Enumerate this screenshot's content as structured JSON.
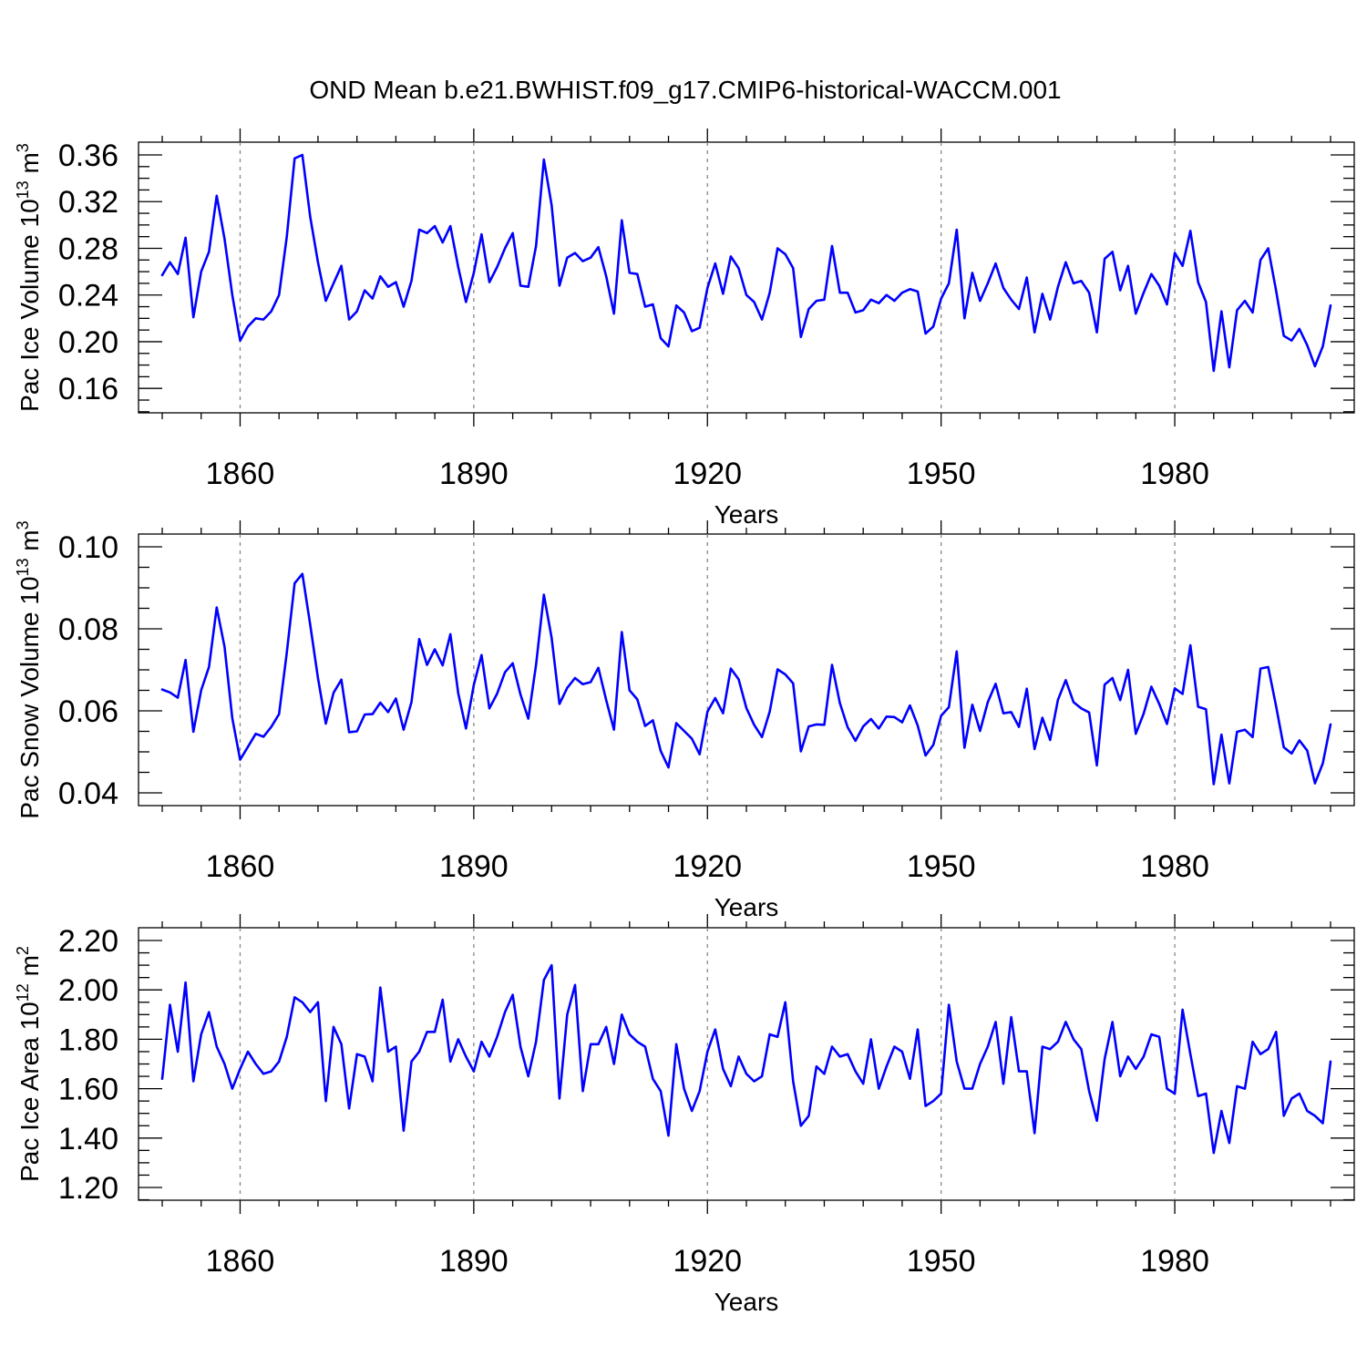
{
  "title": "OND Mean b.e21.BWHIST.f09_g17.CMIP6-historical-WACCM.001",
  "colors": {
    "line": "#0000ff",
    "axis": "#000000",
    "grid": "#888888"
  },
  "chart_data": [
    {
      "type": "line",
      "title": "",
      "xlabel": "Years",
      "ylabel": "Pac Ice Volume 10",
      "ylabel_sup": "13",
      "ylabel_unit": "m",
      "ylabel_unit_sup": "3",
      "xlim": [
        1850,
        2000
      ],
      "ylim": [
        0.15,
        0.36
      ],
      "xticks": [
        1860,
        1890,
        1920,
        1950,
        1980
      ],
      "xtick_labels": [
        "1860",
        "1890",
        "1920",
        "1950",
        "1980"
      ],
      "yticks": [
        0.16,
        0.2,
        0.24,
        0.28,
        0.32,
        0.36
      ],
      "ytick_labels": [
        "0.16",
        "0.20",
        "0.24",
        "0.28",
        "0.32",
        "0.36"
      ],
      "grid": "dashed vertical at labeled years",
      "x_start": 1850,
      "series": [
        {
          "values": [
            0.257,
            0.268,
            0.258,
            0.289,
            0.221,
            0.26,
            0.277,
            0.325,
            0.288,
            0.24,
            0.201,
            0.213,
            0.22,
            0.219,
            0.226,
            0.24,
            0.29,
            0.357,
            0.36,
            0.307,
            0.268,
            0.235,
            0.25,
            0.265,
            0.219,
            0.226,
            0.244,
            0.237,
            0.256,
            0.247,
            0.251,
            0.23,
            0.252,
            0.296,
            0.293,
            0.299,
            0.285,
            0.299,
            0.264,
            0.234,
            0.259,
            0.292,
            0.251,
            0.264,
            0.28,
            0.293,
            0.248,
            0.247,
            0.282,
            0.356,
            0.317,
            0.248,
            0.272,
            0.276,
            0.269,
            0.272,
            0.281,
            0.256,
            0.224,
            0.304,
            0.259,
            0.258,
            0.23,
            0.232,
            0.203,
            0.196,
            0.231,
            0.225,
            0.209,
            0.212,
            0.246,
            0.267,
            0.241,
            0.273,
            0.263,
            0.24,
            0.234,
            0.219,
            0.242,
            0.28,
            0.275,
            0.263,
            0.204,
            0.228,
            0.235,
            0.236,
            0.282,
            0.242,
            0.242,
            0.225,
            0.227,
            0.236,
            0.233,
            0.24,
            0.235,
            0.242,
            0.245,
            0.243,
            0.207,
            0.213,
            0.237,
            0.25,
            0.296,
            0.22,
            0.259,
            0.235,
            0.25,
            0.267,
            0.246,
            0.236,
            0.228,
            0.255,
            0.208,
            0.241,
            0.219,
            0.247,
            0.268,
            0.25,
            0.252,
            0.242,
            0.208,
            0.271,
            0.277,
            0.244,
            0.265,
            0.224,
            0.242,
            0.258,
            0.248,
            0.232,
            0.276,
            0.265,
            0.295,
            0.251,
            0.234,
            0.175,
            0.226,
            0.178,
            0.227,
            0.235,
            0.225,
            0.27,
            0.28,
            0.244,
            0.205,
            0.201,
            0.211,
            0.197,
            0.179,
            0.196,
            0.231
          ]
        }
      ]
    },
    {
      "type": "line",
      "title": "",
      "xlabel": "Years",
      "ylabel": "Pac Snow Volume 10",
      "ylabel_sup": "13",
      "ylabel_unit": "m",
      "ylabel_unit_sup": "3",
      "xlim": [
        1850,
        2000
      ],
      "ylim": [
        0.04,
        0.1
      ],
      "xticks": [
        1860,
        1890,
        1920,
        1950,
        1980
      ],
      "xtick_labels": [
        "1860",
        "1890",
        "1920",
        "1950",
        "1980"
      ],
      "yticks": [
        0.04,
        0.06,
        0.08,
        0.1
      ],
      "ytick_labels": [
        "0.04",
        "0.06",
        "0.08",
        "0.10"
      ],
      "grid": "dashed vertical at labeled years",
      "x_start": 1850,
      "series": [
        {
          "values": [
            0.0652,
            0.0645,
            0.0632,
            0.0724,
            0.0549,
            0.065,
            0.0707,
            0.0852,
            0.0756,
            0.0582,
            0.0481,
            0.0512,
            0.0544,
            0.0537,
            0.0561,
            0.0592,
            0.0742,
            0.0911,
            0.0934,
            0.081,
            0.068,
            0.0569,
            0.0644,
            0.0676,
            0.0548,
            0.055,
            0.0591,
            0.0592,
            0.062,
            0.0597,
            0.063,
            0.0554,
            0.0621,
            0.0775,
            0.0712,
            0.075,
            0.0711,
            0.0787,
            0.0643,
            0.0557,
            0.0663,
            0.0736,
            0.0606,
            0.0642,
            0.0694,
            0.0716,
            0.064,
            0.0581,
            0.0712,
            0.0883,
            0.0778,
            0.0617,
            0.0656,
            0.068,
            0.0665,
            0.067,
            0.0705,
            0.0626,
            0.0554,
            0.0792,
            0.065,
            0.0628,
            0.0563,
            0.0577,
            0.0502,
            0.0462,
            0.057,
            0.0551,
            0.0532,
            0.0494,
            0.0598,
            0.0631,
            0.0594,
            0.0703,
            0.0677,
            0.0607,
            0.0566,
            0.0536,
            0.0598,
            0.0701,
            0.0689,
            0.0667,
            0.0501,
            0.0562,
            0.0567,
            0.0566,
            0.0712,
            0.0619,
            0.056,
            0.0527,
            0.0562,
            0.058,
            0.0557,
            0.0586,
            0.0585,
            0.0572,
            0.0613,
            0.0564,
            0.0491,
            0.0517,
            0.0588,
            0.0609,
            0.0745,
            0.051,
            0.0615,
            0.0551,
            0.0621,
            0.0666,
            0.0594,
            0.0597,
            0.0561,
            0.0654,
            0.0507,
            0.0583,
            0.0529,
            0.0627,
            0.0675,
            0.0621,
            0.0606,
            0.0596,
            0.0467,
            0.0664,
            0.068,
            0.0626,
            0.07,
            0.0544,
            0.0593,
            0.0659,
            0.0617,
            0.0568,
            0.0655,
            0.0641,
            0.076,
            0.061,
            0.0604,
            0.0421,
            0.0542,
            0.0423,
            0.0549,
            0.0554,
            0.0536,
            0.0703,
            0.0707,
            0.0612,
            0.0511,
            0.0496,
            0.0528,
            0.0503,
            0.0423,
            0.0472,
            0.0567
          ]
        }
      ]
    },
    {
      "type": "line",
      "title": "",
      "xlabel": "Years",
      "ylabel": "Pac Ice Area 10",
      "ylabel_sup": "12",
      "ylabel_unit": "m",
      "ylabel_unit_sup": "2",
      "xlim": [
        1850,
        2000
      ],
      "ylim": [
        1.2,
        2.2
      ],
      "xticks": [
        1860,
        1890,
        1920,
        1950,
        1980
      ],
      "xtick_labels": [
        "1860",
        "1890",
        "1920",
        "1950",
        "1980"
      ],
      "yticks": [
        1.2,
        1.4,
        1.6,
        1.8,
        2.0,
        2.2
      ],
      "ytick_labels": [
        "1.20",
        "1.40",
        "1.60",
        "1.80",
        "2.00",
        "2.20"
      ],
      "grid": "dashed vertical at labeled years",
      "x_start": 1850,
      "series": [
        {
          "values": [
            1.64,
            1.94,
            1.75,
            2.03,
            1.63,
            1.82,
            1.91,
            1.77,
            1.7,
            1.6,
            1.68,
            1.75,
            1.7,
            1.66,
            1.67,
            1.71,
            1.81,
            1.97,
            1.95,
            1.91,
            1.95,
            1.55,
            1.85,
            1.78,
            1.52,
            1.74,
            1.73,
            1.63,
            2.01,
            1.75,
            1.77,
            1.43,
            1.71,
            1.75,
            1.83,
            1.83,
            1.96,
            1.71,
            1.8,
            1.73,
            1.67,
            1.79,
            1.73,
            1.81,
            1.91,
            1.98,
            1.77,
            1.65,
            1.79,
            2.04,
            2.1,
            1.56,
            1.9,
            2.02,
            1.59,
            1.78,
            1.78,
            1.85,
            1.7,
            1.9,
            1.82,
            1.79,
            1.77,
            1.64,
            1.59,
            1.41,
            1.78,
            1.6,
            1.51,
            1.59,
            1.75,
            1.84,
            1.68,
            1.61,
            1.73,
            1.66,
            1.63,
            1.65,
            1.82,
            1.81,
            1.95,
            1.63,
            1.45,
            1.49,
            1.69,
            1.66,
            1.77,
            1.73,
            1.74,
            1.67,
            1.62,
            1.8,
            1.6,
            1.69,
            1.77,
            1.75,
            1.64,
            1.84,
            1.53,
            1.55,
            1.58,
            1.94,
            1.71,
            1.6,
            1.6,
            1.7,
            1.77,
            1.87,
            1.62,
            1.89,
            1.67,
            1.67,
            1.42,
            1.77,
            1.76,
            1.79,
            1.87,
            1.8,
            1.76,
            1.59,
            1.47,
            1.72,
            1.87,
            1.65,
            1.73,
            1.68,
            1.73,
            1.82,
            1.81,
            1.6,
            1.58,
            1.92,
            1.74,
            1.57,
            1.58,
            1.34,
            1.51,
            1.38,
            1.61,
            1.6,
            1.79,
            1.74,
            1.76,
            1.83,
            1.49,
            1.56,
            1.58,
            1.51,
            1.49,
            1.46,
            1.71
          ]
        }
      ]
    }
  ]
}
